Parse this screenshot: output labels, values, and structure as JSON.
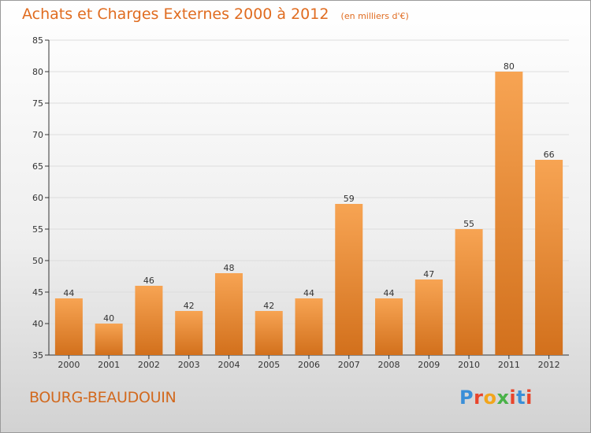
{
  "header": {
    "title": "Achats et Charges Externes 2000 à 2012",
    "unit": "(en milliers d'€)"
  },
  "footer": {
    "commune": "BOURG-BEAUDOUIN",
    "logo": "Proxiti",
    "logo_colors": [
      "#3a8fd8",
      "#e8452c",
      "#f2a51c",
      "#49b248",
      "#e8452c",
      "#3a8fd8",
      "#e8452c"
    ]
  },
  "colors": {
    "bar_top": "#f7a453",
    "bar_bottom": "#d2701c",
    "title": "#e06c20",
    "axis": "#333333",
    "grid": "#dddddd"
  },
  "chart_data": {
    "type": "bar",
    "title": "Achats et Charges Externes 2000 à 2012",
    "subtitle": "(en milliers d'€)",
    "xlabel": "",
    "ylabel": "",
    "categories": [
      "2000",
      "2001",
      "2002",
      "2003",
      "2004",
      "2005",
      "2006",
      "2007",
      "2008",
      "2009",
      "2010",
      "2011",
      "2012"
    ],
    "values": [
      44,
      40,
      46,
      42,
      48,
      42,
      44,
      59,
      44,
      47,
      55,
      80,
      66
    ],
    "ylim": [
      35,
      85
    ],
    "yticks": [
      35,
      40,
      45,
      50,
      55,
      60,
      65,
      70,
      75,
      80,
      85
    ],
    "grid": true,
    "legend": "none"
  }
}
